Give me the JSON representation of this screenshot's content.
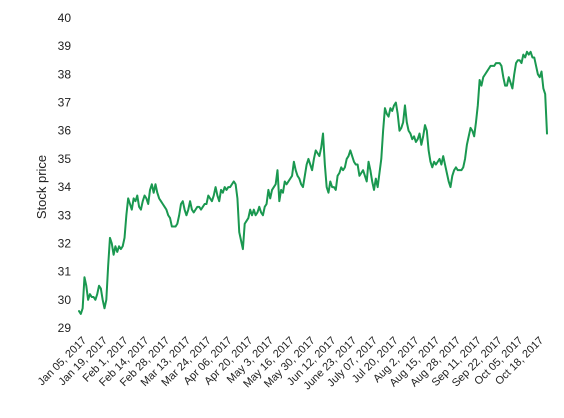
{
  "chart_data": {
    "type": "line",
    "title": "",
    "xlabel": "",
    "ylabel": "Stock price",
    "ylim": [
      29,
      40
    ],
    "yticks": [
      29,
      30,
      31,
      32,
      33,
      34,
      35,
      36,
      37,
      38,
      39,
      40
    ],
    "xtick_labels": [
      "Jan 05, 2017",
      "Jan 19, 2017",
      "Feb 1, 2017",
      "Feb 14, 2017",
      "Feb 28, 2017",
      "Mar 13, 2017",
      "Mar 24, 2017",
      "Apr 06, 2017",
      "Apr 20, 2017",
      "May 3, 2017",
      "May 16, 2017",
      "May 30, 2017",
      "Jun 12, 2017",
      "June 23, 2017",
      "July 07, 2017",
      "Jul 20, 2017",
      "Aug 2, 2017",
      "Aug 15, 2017",
      "Aug 28, 2017",
      "Sep 11, 2017",
      "Sep 22, 2017",
      "Oct 05, 2017",
      "Oct 18, 2017"
    ],
    "grid": false,
    "legend": "none",
    "line_color": "#1a9850",
    "series": [
      {
        "values": [
          29.6,
          29.5,
          29.7,
          30.8,
          30.5,
          30.0,
          30.2,
          30.1,
          30.1,
          30.0,
          30.2,
          30.5,
          30.4,
          30.0,
          29.7,
          30.0,
          31.2,
          32.2,
          32.0,
          31.6,
          31.9,
          31.7,
          31.9,
          31.8,
          31.9,
          32.2,
          33.0,
          33.6,
          33.4,
          33.2,
          33.6,
          33.5,
          33.7,
          33.3,
          33.2,
          33.5,
          33.7,
          33.6,
          33.4,
          33.9,
          34.1,
          33.8,
          34.1,
          33.8,
          33.6,
          33.5,
          33.4,
          33.3,
          33.2,
          33.0,
          32.9,
          32.6,
          32.6,
          32.6,
          32.7,
          33.0,
          33.4,
          33.5,
          33.2,
          33.0,
          33.2,
          33.5,
          33.2,
          33.1,
          33.2,
          33.3,
          33.3,
          33.2,
          33.3,
          33.4,
          33.4,
          33.7,
          33.6,
          33.5,
          33.7,
          34.0,
          33.7,
          33.5,
          33.9,
          33.8,
          34.0,
          33.9,
          34.0,
          34.0,
          34.1,
          34.2,
          34.1,
          33.6,
          32.4,
          32.1,
          31.8,
          32.7,
          32.8,
          32.9,
          33.2,
          33.0,
          33.2,
          33.0,
          33.1,
          33.3,
          33.1,
          33.0,
          33.3,
          33.4,
          33.9,
          33.6,
          33.9,
          34.0,
          34.1,
          34.6,
          33.5,
          33.9,
          33.8,
          34.2,
          34.1,
          34.2,
          34.3,
          34.4,
          34.9,
          34.6,
          34.4,
          34.3,
          34.1,
          34.0,
          34.4,
          34.8,
          35.0,
          34.8,
          34.6,
          35.0,
          35.3,
          35.2,
          35.1,
          35.4,
          35.9,
          34.8,
          34.0,
          33.8,
          34.2,
          34.0,
          34.0,
          33.9,
          34.4,
          34.5,
          34.7,
          34.6,
          34.7,
          35.0,
          35.1,
          35.3,
          35.1,
          34.9,
          34.8,
          34.8,
          34.4,
          34.5,
          34.6,
          34.4,
          34.2,
          34.9,
          34.6,
          34.2,
          33.9,
          34.3,
          34.0,
          34.5,
          35.0,
          36.0,
          36.8,
          36.6,
          36.5,
          36.8,
          36.7,
          36.9,
          37.0,
          36.6,
          36.0,
          36.1,
          36.3,
          36.9,
          36.3,
          36.0,
          35.9,
          35.7,
          35.8,
          35.6,
          35.7,
          35.9,
          35.5,
          35.8,
          36.2,
          36.0,
          35.3,
          34.9,
          34.7,
          34.9,
          34.8,
          34.9,
          35.0,
          34.8,
          35.1,
          34.8,
          34.5,
          34.2,
          34.0,
          34.4,
          34.6,
          34.7,
          34.6,
          34.6,
          34.6,
          34.7,
          35.0,
          35.5,
          35.8,
          36.1,
          36.0,
          35.8,
          36.3,
          36.9,
          37.8,
          37.6,
          37.9,
          38.0,
          38.1,
          38.2,
          38.3,
          38.3,
          38.3,
          38.4,
          38.4,
          38.4,
          38.3,
          37.9,
          37.6,
          37.6,
          37.9,
          37.7,
          37.5,
          38.0,
          38.4,
          38.5,
          38.5,
          38.4,
          38.7,
          38.6,
          38.8,
          38.7,
          38.8,
          38.6,
          38.6,
          38.3,
          38.0,
          37.9,
          38.1,
          37.5,
          37.3,
          35.9
        ]
      }
    ]
  }
}
